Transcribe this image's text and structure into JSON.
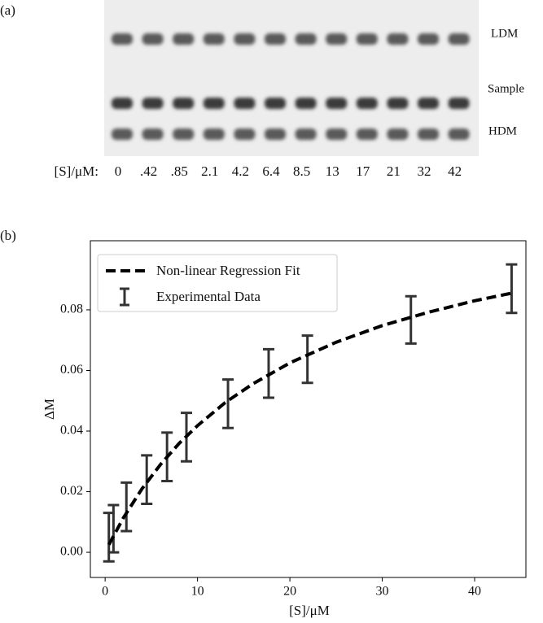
{
  "gel": {
    "panel_label": "(a)",
    "axis_label": "[S]/μM:",
    "lanes": [
      "0",
      ".42",
      ".85",
      "2.1",
      "4.2",
      "6.4",
      "8.5",
      "13",
      "17",
      "21",
      "32",
      "42"
    ],
    "bands": [
      "LDM",
      "Sample",
      "HDM"
    ]
  },
  "chart_data": {
    "type": "line",
    "panel_label": "(b)",
    "xlabel": "[S]/μM",
    "ylabel": "ΔM",
    "xlim": [
      -1.6,
      45.55
    ],
    "ylim": [
      -0.0083,
      0.1028
    ],
    "xticks": [
      0,
      10,
      20,
      30,
      40
    ],
    "yticks": [
      {
        "value": 0,
        "label": "0.00"
      },
      {
        "value": 0.02,
        "label": "0.02"
      },
      {
        "value": 0.04,
        "label": "0.04"
      },
      {
        "value": 0.06,
        "label": "0.06"
      },
      {
        "value": 0.08,
        "label": "0.08"
      }
    ],
    "legend": "upper left",
    "series": [
      {
        "name": "Non-linear Regression Fit",
        "color": "#000000",
        "style": "dashed",
        "x": [
          0.4,
          2,
          4,
          6,
          8,
          10,
          13,
          16,
          20,
          25,
          30,
          35,
          40,
          44
        ],
        "values": [
          0.0025,
          0.0115,
          0.021,
          0.029,
          0.0359,
          0.0418,
          0.0494,
          0.0556,
          0.0625,
          0.0693,
          0.0748,
          0.0792,
          0.083,
          0.0855
        ]
      },
      {
        "name": "Experimental Data",
        "type": "errorbar",
        "color": "#333333",
        "x": [
          0.4,
          0.9,
          2.3,
          4.5,
          6.7,
          8.8,
          13.3,
          17.7,
          21.9,
          33.1,
          44.0
        ],
        "values": [
          0.005,
          0.0078,
          0.015,
          0.024,
          0.0315,
          0.038,
          0.049,
          0.059,
          0.0637,
          0.0767,
          0.087
        ],
        "errors": [
          0.008,
          0.0078,
          0.008,
          0.008,
          0.008,
          0.008,
          0.008,
          0.008,
          0.0078,
          0.0078,
          0.008
        ]
      }
    ]
  }
}
